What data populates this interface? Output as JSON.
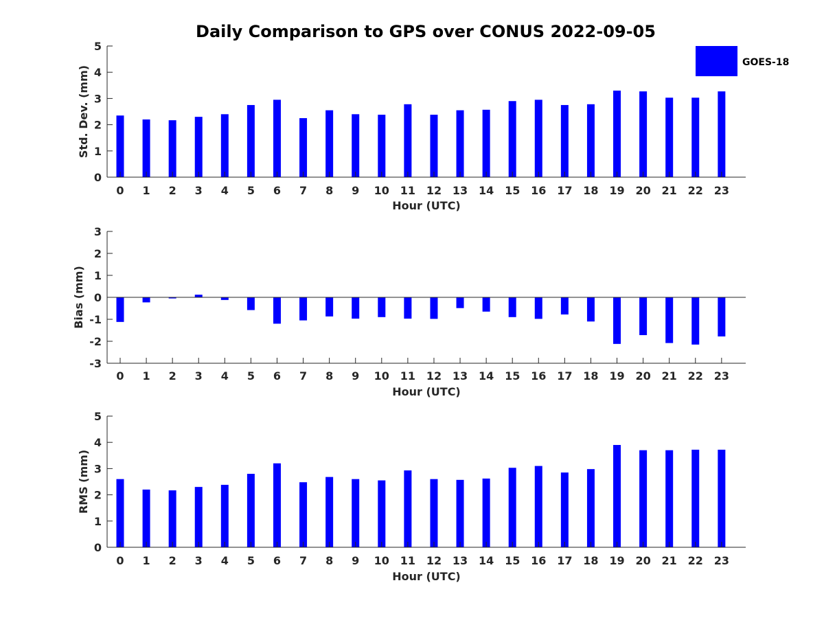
{
  "title": "Daily Comparison to GPS over CONUS 2022-09-05",
  "legend": {
    "label": "GOES-18",
    "color": "#0000FF"
  },
  "chart_data": [
    {
      "type": "bar",
      "id": "std",
      "xlabel": "Hour (UTC)",
      "ylabel": "Std. Dev. (mm)",
      "ylim": [
        0,
        5
      ],
      "yticks": [
        "0",
        "1",
        "2",
        "3",
        "4",
        "5"
      ],
      "categories": [
        "0",
        "1",
        "2",
        "3",
        "4",
        "5",
        "6",
        "7",
        "8",
        "9",
        "10",
        "11",
        "12",
        "13",
        "14",
        "15",
        "16",
        "17",
        "18",
        "19",
        "20",
        "21",
        "22",
        "23"
      ],
      "series": [
        {
          "name": "GOES-18",
          "values": [
            2.35,
            2.2,
            2.17,
            2.3,
            2.4,
            2.75,
            2.95,
            2.25,
            2.55,
            2.4,
            2.38,
            2.78,
            2.38,
            2.55,
            2.57,
            2.9,
            2.95,
            2.75,
            2.78,
            3.3,
            3.27,
            3.03,
            3.03,
            3.27
          ]
        }
      ]
    },
    {
      "type": "bar",
      "id": "bias",
      "xlabel": "Hour (UTC)",
      "ylabel": "Bias (mm)",
      "ylim": [
        -3,
        3
      ],
      "yticks": [
        "-3",
        "-2",
        "-1",
        "0",
        "1",
        "2",
        "3"
      ],
      "categories": [
        "0",
        "1",
        "2",
        "3",
        "4",
        "5",
        "6",
        "7",
        "8",
        "9",
        "10",
        "11",
        "12",
        "13",
        "14",
        "15",
        "16",
        "17",
        "18",
        "19",
        "20",
        "21",
        "22",
        "23"
      ],
      "series": [
        {
          "name": "GOES-18",
          "values": [
            -1.12,
            -0.23,
            -0.05,
            0.12,
            -0.12,
            -0.58,
            -1.2,
            -1.05,
            -0.87,
            -0.97,
            -0.9,
            -0.97,
            -0.98,
            -0.49,
            -0.65,
            -0.9,
            -0.98,
            -0.78,
            -1.1,
            -2.12,
            -1.72,
            -2.08,
            -2.15,
            -1.78
          ]
        }
      ]
    },
    {
      "type": "bar",
      "id": "rms",
      "xlabel": "Hour (UTC)",
      "ylabel": "RMS (mm)",
      "ylim": [
        0,
        5
      ],
      "yticks": [
        "0",
        "1",
        "2",
        "3",
        "4",
        "5"
      ],
      "categories": [
        "0",
        "1",
        "2",
        "3",
        "4",
        "5",
        "6",
        "7",
        "8",
        "9",
        "10",
        "11",
        "12",
        "13",
        "14",
        "15",
        "16",
        "17",
        "18",
        "19",
        "20",
        "21",
        "22",
        "23"
      ],
      "series": [
        {
          "name": "GOES-18",
          "values": [
            2.6,
            2.2,
            2.17,
            2.3,
            2.38,
            2.8,
            3.2,
            2.48,
            2.68,
            2.6,
            2.55,
            2.93,
            2.6,
            2.57,
            2.62,
            3.03,
            3.1,
            2.85,
            2.98,
            3.9,
            3.7,
            3.7,
            3.72,
            3.72
          ]
        }
      ]
    }
  ]
}
